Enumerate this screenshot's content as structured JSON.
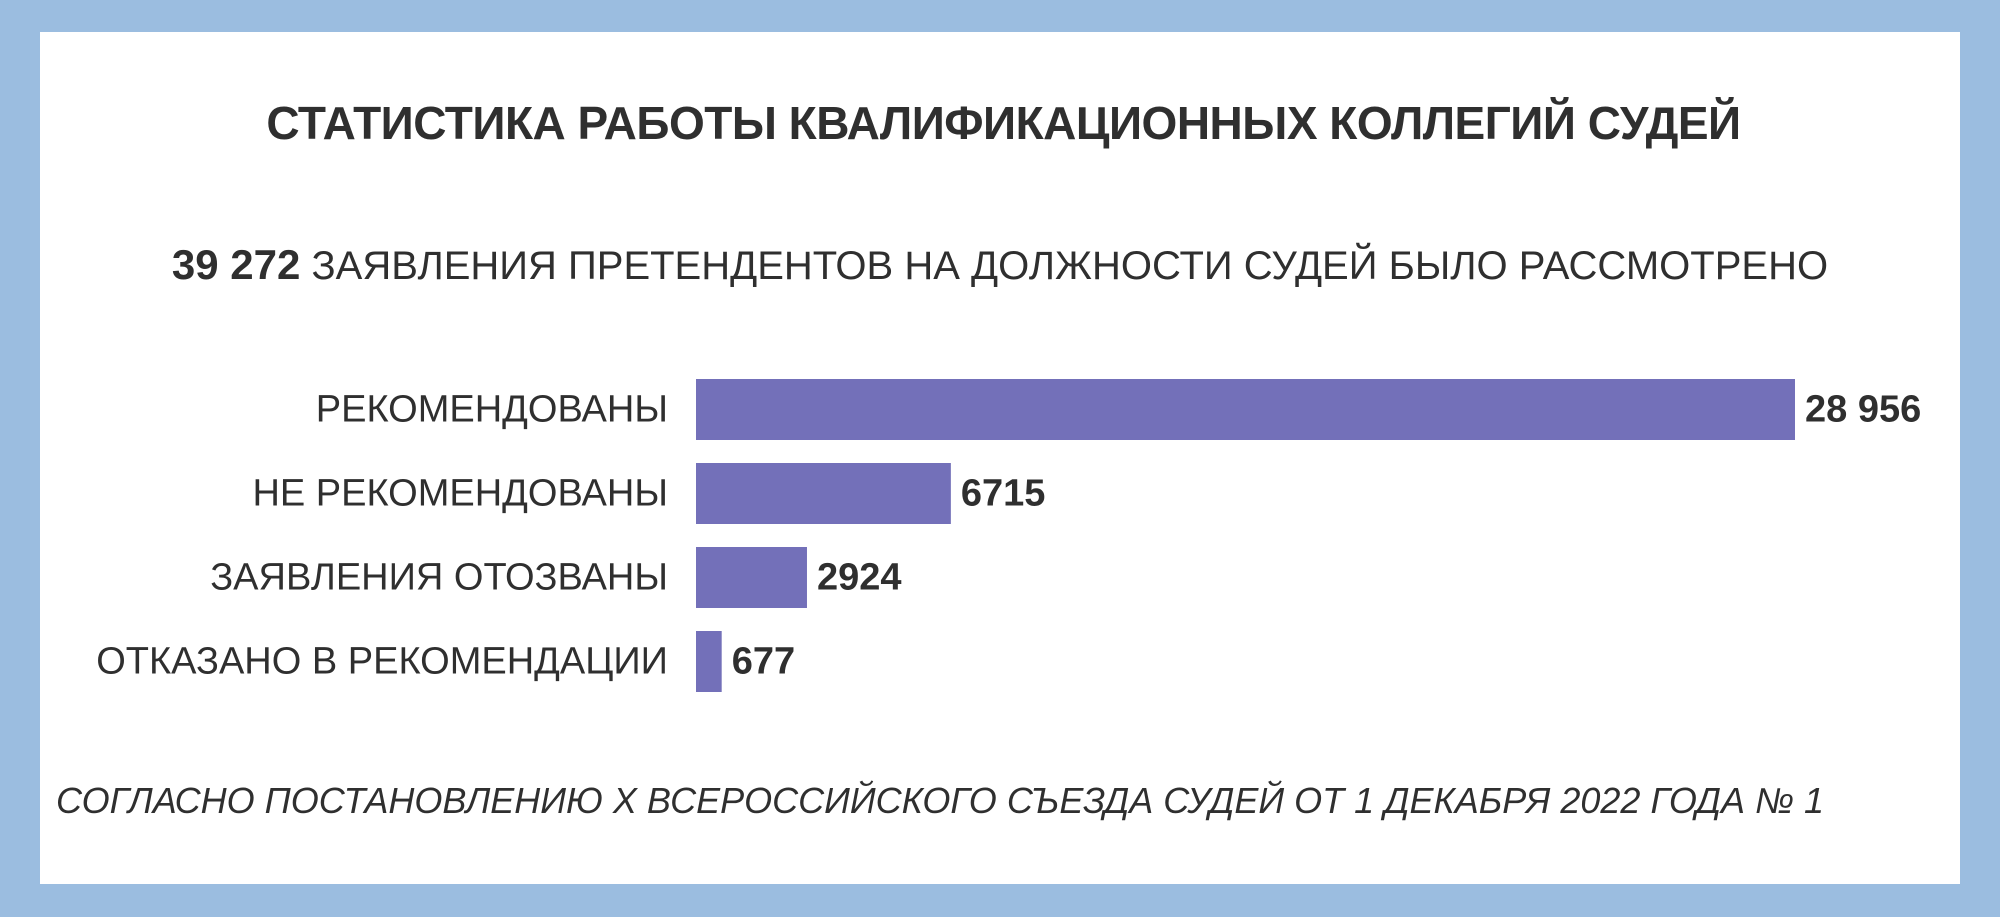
{
  "title": "СТАТИСТИКА РАБОТЫ КВАЛИФИКАЦИОННЫХ КОЛЛЕГИЙ СУДЕЙ",
  "subtitle": {
    "total": "39 272",
    "text": " ЗАЯВЛЕНИЯ ПРЕТЕНДЕНТОВ НА ДОЛЖНОСТИ СУДЕЙ БЫЛО РАССМОТРЕНО"
  },
  "footnote": "СОГЛАСНО ПОСТАНОВЛЕНИЮ X ВСЕРОССИЙСКОГО СЪЕЗДА СУДЕЙ ОТ 1 ДЕКАБРЯ 2022 ГОДА № 1",
  "colors": {
    "background": "#9bbde0",
    "card": "#ffffff",
    "bar": "#7370b9",
    "text": "#2f2f2f"
  },
  "chart_data": {
    "type": "bar",
    "orientation": "horizontal",
    "categories": [
      "РЕКОМЕНДОВАНЫ",
      "НЕ РЕКОМЕНДОВАНЫ",
      "ЗАЯВЛЕНИЯ ОТОЗВАНЫ",
      "ОТКАЗАНО В РЕКОМЕНДАЦИИ"
    ],
    "values": [
      28956,
      6715,
      2924,
      677
    ],
    "value_labels": [
      "28 956",
      "6715",
      "2924",
      "677"
    ],
    "xlim": [
      0,
      28956
    ],
    "grid": false,
    "legend": "none"
  }
}
